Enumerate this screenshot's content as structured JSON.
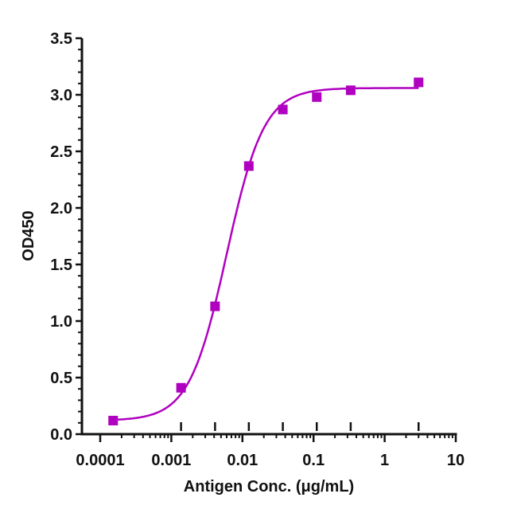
{
  "chart_data": {
    "type": "scatter",
    "xlabel": "Antigen Conc. (μg/mL)",
    "ylabel": "OD450",
    "xscale": "log",
    "xlim": [
      0.0001,
      10
    ],
    "ylim": [
      0,
      3.5
    ],
    "x_ticks": [
      "0.0001",
      "0.001",
      "0.01",
      "0.1",
      "1",
      "10"
    ],
    "y_ticks": [
      "0.0",
      "0.5",
      "1.0",
      "1.5",
      "2.0",
      "2.5",
      "3.0",
      "3.5"
    ],
    "grid": false,
    "series": [
      {
        "x": [
          0.000152,
          0.00137,
          0.00412,
          0.0123,
          0.037,
          0.111,
          0.333,
          3
        ],
        "y": [
          0.12,
          0.41,
          1.13,
          2.37,
          2.87,
          2.98,
          3.04,
          3.11
        ],
        "marker": "square",
        "color": "#b000c0"
      }
    ],
    "fit": {
      "model": "4PL",
      "bottom": 0.12,
      "top": 3.06,
      "ec50": 0.006,
      "hill": 1.65,
      "color": "#b000c0"
    }
  }
}
